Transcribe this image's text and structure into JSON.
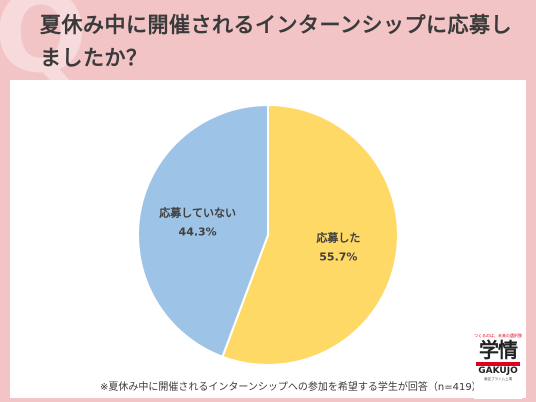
{
  "header": {
    "title": "夏休み中に開催されるインターンシップに応募しましたか？"
  },
  "chart_data": {
    "type": "pie",
    "start_angle": "12 o'clock",
    "direction": "clockwise",
    "slices": [
      {
        "label": "応募した",
        "value": 55.7,
        "value_label": "55.7%",
        "color": "#ffd966"
      },
      {
        "label": "応募していない",
        "value": 44.3,
        "value_label": "44.3%",
        "color": "#9dc3e6"
      }
    ]
  },
  "footnote": "※夏休み中に開催されるインターンシップへの参加を希望する学生が回答（n=419）",
  "logo": {
    "tagline": "つくるのは、未来の選択肢",
    "mark": "学情",
    "name": "GAKUJO",
    "sub": "東証プライム上場"
  },
  "colors": {
    "background": "#f2c4c6",
    "slice_applied": "#ffd966",
    "slice_not_applied": "#9dc3e6"
  }
}
